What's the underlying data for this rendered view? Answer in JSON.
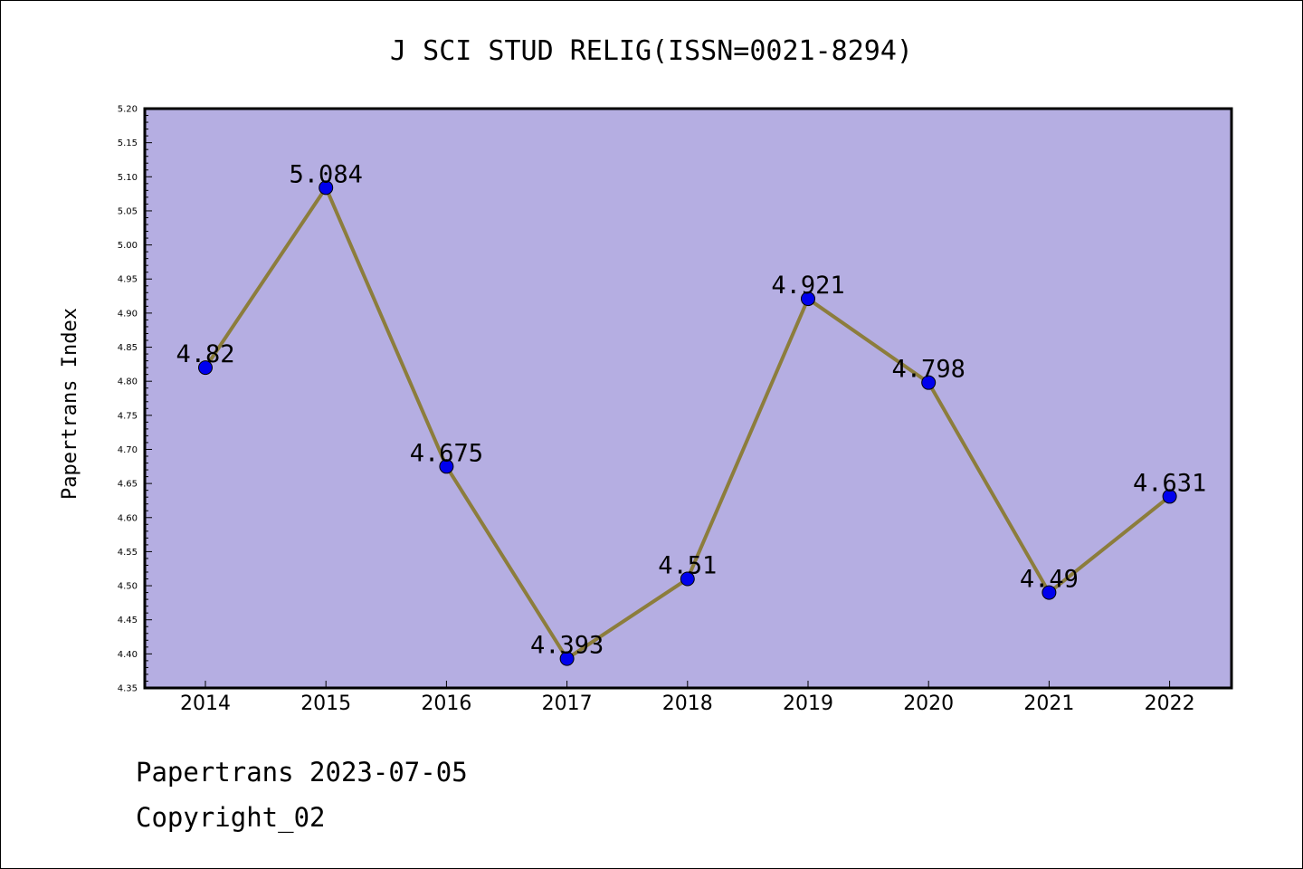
{
  "chart_data": {
    "type": "line",
    "title": "J SCI STUD RELIG(ISSN=0021-8294)",
    "xlabel": "",
    "ylabel": "Papertrans Index",
    "categories": [
      "2014",
      "2015",
      "2016",
      "2017",
      "2018",
      "2019",
      "2020",
      "2021",
      "2022"
    ],
    "series": [
      {
        "values": [
          4.82,
          5.084,
          4.675,
          4.393,
          4.51,
          4.921,
          4.798,
          4.49,
          4.631
        ],
        "labels": [
          "4.82",
          "5.084",
          "4.675",
          "4.393",
          "4.51",
          "4.921",
          "4.798",
          "4.49",
          "4.631"
        ]
      }
    ],
    "ylim": [
      4.35,
      5.2
    ],
    "yticks": [
      "4.35",
      "4.40",
      "4.45",
      "4.50",
      "4.55",
      "4.60",
      "4.65",
      "4.70",
      "4.75",
      "4.80",
      "4.85",
      "4.90",
      "4.95",
      "5.00",
      "5.05",
      "5.10",
      "5.15",
      "5.20"
    ],
    "grid": false,
    "colors": {
      "plot_background": "#b5aee2",
      "line": "#8c7d3c",
      "marker": "#0000ee"
    }
  },
  "footer": {
    "source": "Papertrans 2023-07-05",
    "copyright": "Copyright_02"
  }
}
